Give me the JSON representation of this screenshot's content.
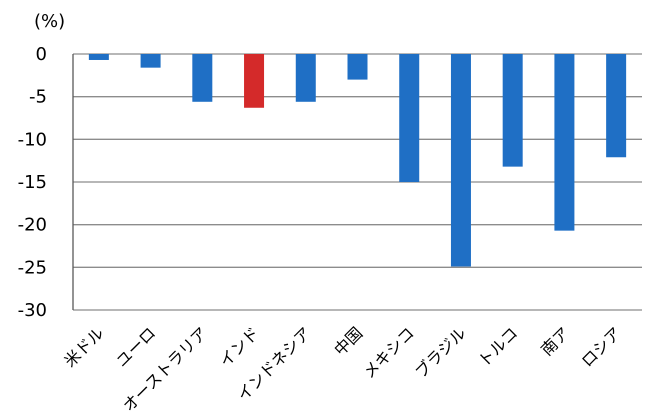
{
  "chart_data": {
    "type": "bar",
    "unit_label": "(%)",
    "categories": [
      "米ドル",
      "ユーロ",
      "オーストラリア",
      "インド",
      "インドネシア",
      "中国",
      "メキシコ",
      "ブラジル",
      "トルコ",
      "南ア",
      "ロシア"
    ],
    "values": [
      -0.7,
      -1.6,
      -5.6,
      -6.3,
      -5.6,
      -3.0,
      -15.0,
      -24.9,
      -13.2,
      -20.7,
      -12.1
    ],
    "ylim": [
      -30,
      0
    ],
    "yticks": [
      0,
      -5,
      -10,
      -15,
      -20,
      -25,
      -30
    ],
    "grid": true,
    "colors": {
      "default": "#1F6FC5",
      "highlight": "#D42A2A",
      "grid": "#8C8C8C",
      "axis": "#595959"
    },
    "highlight_category": "インド"
  }
}
